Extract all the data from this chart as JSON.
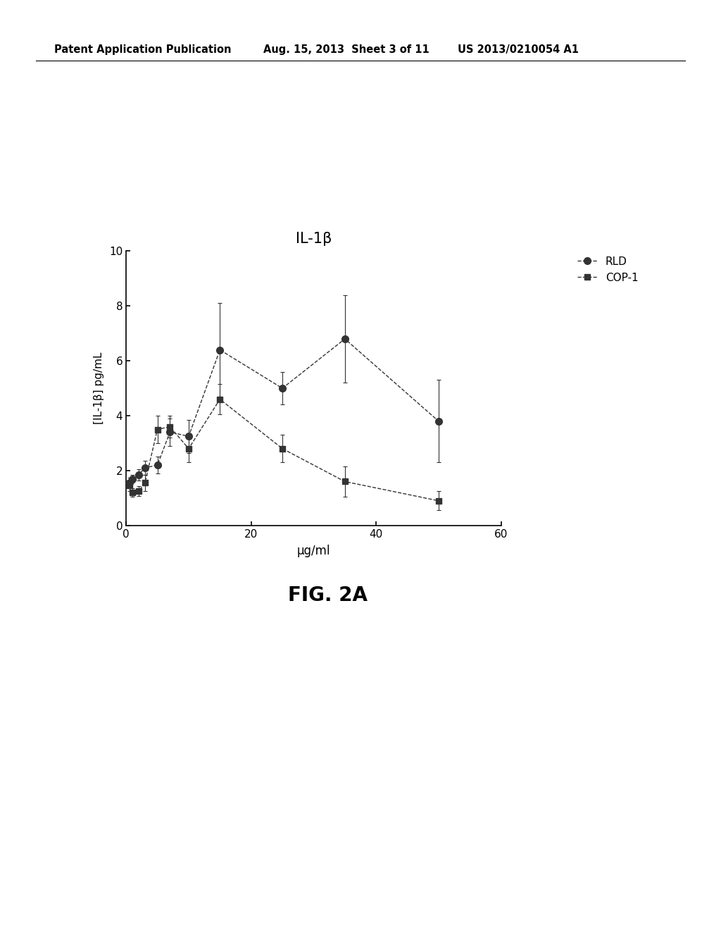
{
  "title": "IL-1β",
  "xlabel": "μg/ml",
  "ylabel": "[IL-1β] pg/mL",
  "xlim": [
    0,
    60
  ],
  "ylim": [
    0,
    10
  ],
  "yticks": [
    0,
    2,
    4,
    6,
    8,
    10
  ],
  "xticks": [
    0,
    20,
    40,
    60
  ],
  "fig_caption": "FIG. 2A",
  "patent_left": "Patent Application Publication",
  "patent_mid": "Aug. 15, 2013  Sheet 3 of 11",
  "patent_right": "US 2013/0210054 A1",
  "rld_x": [
    0.5,
    1.0,
    2.0,
    3.0,
    5.0,
    7.0,
    10.0,
    15.0,
    25.0,
    35.0,
    50.0
  ],
  "rld_y": [
    1.55,
    1.7,
    1.85,
    2.1,
    2.2,
    3.4,
    3.25,
    6.4,
    5.0,
    6.8,
    3.8
  ],
  "rld_yerr": [
    0.2,
    0.15,
    0.2,
    0.25,
    0.3,
    0.5,
    0.6,
    1.7,
    0.6,
    1.6,
    1.5
  ],
  "cop1_x": [
    0.5,
    1.0,
    2.0,
    3.0,
    5.0,
    7.0,
    10.0,
    15.0,
    25.0,
    35.0,
    50.0
  ],
  "cop1_y": [
    1.45,
    1.2,
    1.25,
    1.55,
    3.5,
    3.6,
    2.8,
    4.6,
    2.8,
    1.6,
    0.9
  ],
  "cop1_yerr": [
    0.2,
    0.15,
    0.18,
    0.3,
    0.5,
    0.4,
    0.5,
    0.55,
    0.5,
    0.55,
    0.35
  ],
  "line_color": "#333333",
  "bg_color": "#ffffff",
  "text_color": "#000000"
}
